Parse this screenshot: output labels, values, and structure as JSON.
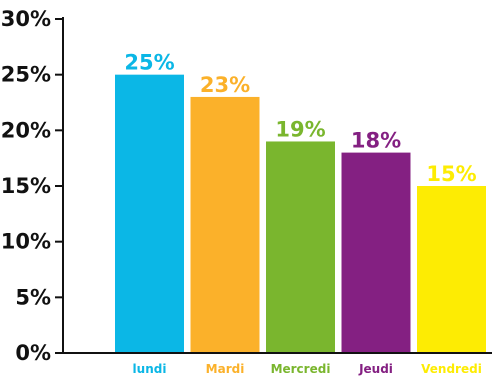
{
  "chart_data": {
    "type": "bar",
    "categories": [
      "lundi",
      "Mardi",
      "Mercredi",
      "Jeudi",
      "Vendredi"
    ],
    "values": [
      25,
      23,
      19,
      18,
      15
    ],
    "value_labels": [
      "25%",
      "23%",
      "19%",
      "18%",
      "15%"
    ],
    "colors": [
      "#0bb7e6",
      "#fbb12a",
      "#7ab62e",
      "#842082",
      "#fdec03"
    ],
    "y_ticks": [
      0,
      5,
      10,
      15,
      20,
      25,
      30
    ],
    "y_tick_labels": [
      "0%",
      "5%",
      "10%",
      "15%",
      "20%",
      "25%",
      "30%"
    ],
    "ylim": [
      0,
      30
    ],
    "grid": false,
    "legend": "none",
    "title": "",
    "xlabel": "",
    "ylabel": ""
  }
}
